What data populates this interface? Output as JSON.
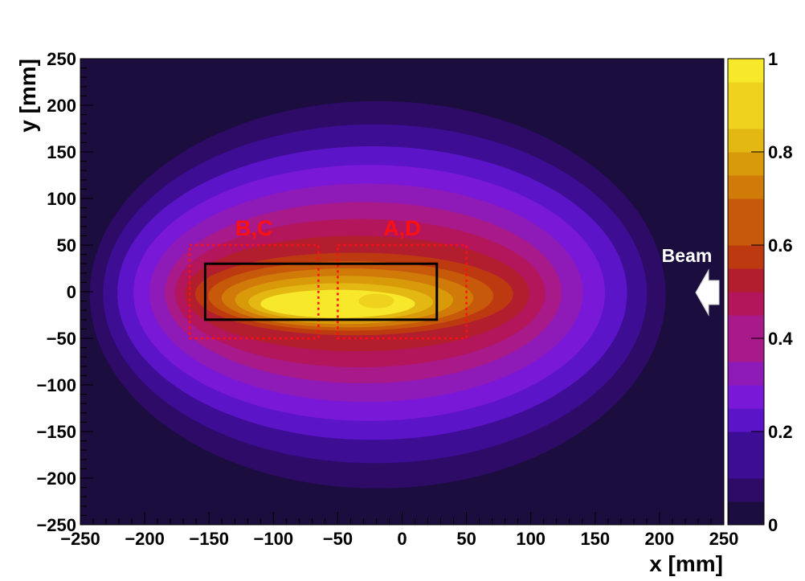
{
  "chart_data": {
    "type": "heatmap",
    "xlabel": "x [mm]",
    "ylabel": "y [mm]",
    "xlim": [
      -250,
      250
    ],
    "ylim": [
      -250,
      250
    ],
    "x_ticks": [
      "−250",
      "−200",
      "−150",
      "−100",
      "−50",
      "0",
      "50",
      "100",
      "150",
      "200",
      "250"
    ],
    "y_ticks": [
      "−250",
      "−200",
      "−150",
      "−100",
      "−50",
      "0",
      "50",
      "100",
      "150",
      "200",
      "250"
    ],
    "colorbar": {
      "range": [
        0,
        1
      ],
      "ticks": [
        "0",
        "0.2",
        "0.4",
        "0.6",
        "0.8",
        "1"
      ],
      "levels": 20
    },
    "peak": {
      "x": -55,
      "y": -15,
      "value": 1.0
    },
    "distribution_contours": [
      {
        "level": 0.05,
        "x_range": [
          -250,
          215
        ],
        "y_range": [
          -230,
          222
        ]
      },
      {
        "level": 0.2,
        "x_range": [
          -225,
          180
        ],
        "y_range": [
          -165,
          162
        ]
      },
      {
        "level": 0.4,
        "x_range": [
          -185,
          125
        ],
        "y_range": [
          -100,
          98
        ]
      },
      {
        "level": 0.6,
        "x_range": [
          -160,
          85
        ],
        "y_range": [
          -45,
          40
        ]
      },
      {
        "level": 0.9,
        "x_range": [
          -110,
          10
        ],
        "y_range": [
          -28,
          2
        ]
      }
    ],
    "annotations": [
      {
        "label": "B,C",
        "color": "#ff1010",
        "style": "dotted",
        "x_range": [
          -165,
          -65
        ],
        "y_range": [
          -50,
          50
        ]
      },
      {
        "label": "A,D",
        "color": "#ff1010",
        "style": "dotted",
        "x_range": [
          -50,
          50
        ],
        "y_range": [
          -50,
          50
        ]
      },
      {
        "label": "",
        "color": "#000000",
        "style": "solid",
        "x_range": [
          -153,
          27
        ],
        "y_range": [
          -30,
          30
        ]
      }
    ],
    "beam_label": "Beam",
    "beam_direction": "-x",
    "colormap": [
      "#1b0d3d",
      "#2d0b66",
      "#3d0d94",
      "#5c14c9",
      "#7a18d8",
      "#8e1ab8",
      "#a8198a",
      "#b3165a",
      "#b21e2e",
      "#bd3a10",
      "#c75a0a",
      "#d07a0a",
      "#d99a0a",
      "#e3b812",
      "#eed21e",
      "#f7e82c"
    ],
    "grid": false
  }
}
